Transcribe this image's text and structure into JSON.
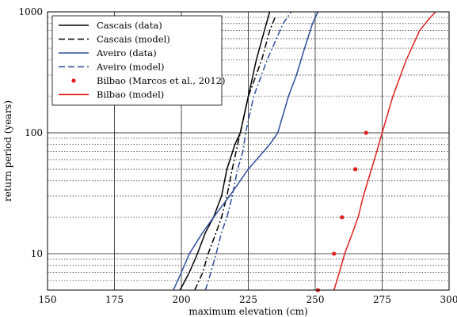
{
  "chart_data": {
    "type": "line",
    "xlabel": "maximum elevation (cm)",
    "ylabel": "return period (years)",
    "xlim": [
      150,
      300
    ],
    "ylim": [
      5,
      1000
    ],
    "yscale": "log",
    "x_ticks": [
      150,
      175,
      200,
      225,
      250,
      275,
      300
    ],
    "y_ticks": [
      10,
      100,
      1000
    ],
    "grid": true,
    "legend_position": "top-left",
    "series": [
      {
        "name": "Cascais (data)",
        "style": "solid",
        "color": "#000000",
        "points": [
          [
            199.5,
            5
          ],
          [
            203,
            7
          ],
          [
            206,
            10
          ],
          [
            209,
            15
          ],
          [
            212,
            20
          ],
          [
            215,
            30
          ],
          [
            217,
            50
          ],
          [
            220,
            80
          ],
          [
            222,
            100
          ],
          [
            225,
            200
          ],
          [
            228,
            400
          ],
          [
            231,
            700
          ],
          [
            233,
            1000
          ]
        ]
      },
      {
        "name": "Cascais (model)",
        "style": "dashdot",
        "color": "#000000",
        "points": [
          [
            205,
            5
          ],
          [
            208,
            7
          ],
          [
            210,
            10
          ],
          [
            213,
            15
          ],
          [
            215,
            20
          ],
          [
            217,
            30
          ],
          [
            219,
            50
          ],
          [
            221,
            80
          ],
          [
            222,
            100
          ],
          [
            225,
            200
          ],
          [
            230,
            400
          ],
          [
            233,
            700
          ],
          [
            235,
            900
          ]
        ]
      },
      {
        "name": "Aveiro (data)",
        "style": "solid",
        "color": "#2d4e9c",
        "points": [
          [
            197,
            5
          ],
          [
            200,
            7
          ],
          [
            203,
            10
          ],
          [
            208,
            15
          ],
          [
            212,
            20
          ],
          [
            218,
            30
          ],
          [
            225,
            50
          ],
          [
            233,
            80
          ],
          [
            236,
            100
          ],
          [
            240,
            200
          ],
          [
            243,
            300
          ],
          [
            246,
            500
          ],
          [
            249,
            800
          ],
          [
            251,
            1000
          ]
        ]
      },
      {
        "name": "Aveiro (model)",
        "style": "dashdot",
        "color": "#2d4e9c",
        "points": [
          [
            209,
            5
          ],
          [
            211,
            7
          ],
          [
            213,
            10
          ],
          [
            215,
            15
          ],
          [
            217,
            20
          ],
          [
            219,
            30
          ],
          [
            221,
            50
          ],
          [
            223,
            70
          ],
          [
            224,
            100
          ],
          [
            227,
            200
          ],
          [
            232,
            400
          ],
          [
            238,
            800
          ],
          [
            241,
            1000
          ]
        ]
      },
      {
        "name": "Bilbao (Marcos et al., 2012)",
        "style": "marker",
        "color": "#e02020",
        "points": [
          [
            251,
            5
          ],
          [
            257,
            10
          ],
          [
            260,
            20
          ],
          [
            265,
            50
          ],
          [
            269,
            100
          ]
        ]
      },
      {
        "name": "Bilbao (model)",
        "style": "solid",
        "color": "#e02020",
        "points": [
          [
            257,
            5
          ],
          [
            259,
            7
          ],
          [
            261,
            10
          ],
          [
            264,
            15
          ],
          [
            266,
            20
          ],
          [
            268,
            30
          ],
          [
            271,
            50
          ],
          [
            273,
            70
          ],
          [
            275,
            100
          ],
          [
            279,
            200
          ],
          [
            284,
            400
          ],
          [
            289,
            700
          ],
          [
            293,
            900
          ],
          [
            295,
            1000
          ]
        ]
      }
    ]
  }
}
